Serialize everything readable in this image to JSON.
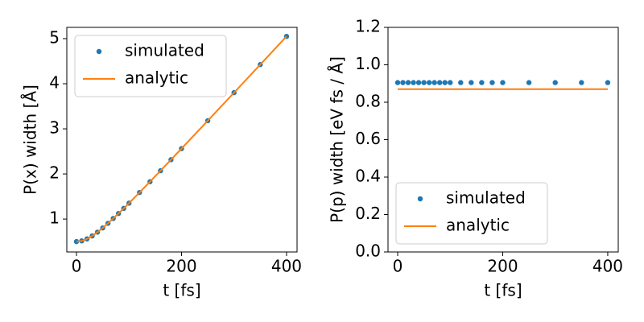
{
  "chart_data": [
    {
      "type": "scatter-line",
      "xlabel": "t [fs]",
      "ylabel": "P(x) width [Å]",
      "x": [
        0,
        10,
        20,
        30,
        40,
        50,
        60,
        70,
        80,
        90,
        100,
        120,
        140,
        160,
        180,
        200,
        250,
        300,
        350,
        400
      ],
      "series": [
        {
          "name": "simulated",
          "color": "#1f77b4",
          "mode": "markers",
          "values": [
            0.5,
            0.516,
            0.56,
            0.626,
            0.709,
            0.803,
            0.905,
            1.012,
            1.123,
            1.236,
            1.352,
            1.588,
            1.828,
            2.071,
            2.316,
            2.562,
            3.18,
            3.802,
            4.425,
            5.05
          ]
        },
        {
          "name": "analytic",
          "color": "#ff7f0e",
          "mode": "lines",
          "values": [
            0.5,
            0.516,
            0.56,
            0.626,
            0.709,
            0.803,
            0.905,
            1.012,
            1.123,
            1.236,
            1.352,
            1.588,
            1.828,
            2.071,
            2.316,
            2.562,
            3.18,
            3.802,
            4.425,
            5.05
          ]
        }
      ],
      "xlim": [
        -18.4,
        420
      ],
      "xticks": [
        0,
        200,
        400
      ],
      "ylim": [
        0.27,
        5.25
      ],
      "yticks": [
        1,
        2,
        3,
        4,
        5
      ],
      "legend": "upper left"
    },
    {
      "type": "scatter-line",
      "xlabel": "t [fs]",
      "ylabel": "P(p) width [eV fs / Å]",
      "x": [
        0,
        10,
        20,
        30,
        40,
        50,
        60,
        70,
        80,
        90,
        100,
        120,
        140,
        160,
        180,
        200,
        250,
        300,
        350,
        400
      ],
      "series": [
        {
          "name": "simulated",
          "color": "#1f77b4",
          "mode": "markers",
          "values": [
            0.905,
            0.905,
            0.905,
            0.905,
            0.905,
            0.905,
            0.905,
            0.905,
            0.905,
            0.905,
            0.905,
            0.905,
            0.905,
            0.905,
            0.905,
            0.905,
            0.905,
            0.905,
            0.905,
            0.905
          ]
        },
        {
          "name": "analytic",
          "color": "#ff7f0e",
          "mode": "lines",
          "values": [
            0.87,
            0.87,
            0.87,
            0.87,
            0.87,
            0.87,
            0.87,
            0.87,
            0.87,
            0.87,
            0.87,
            0.87,
            0.87,
            0.87,
            0.87,
            0.87,
            0.87,
            0.87,
            0.87,
            0.87
          ]
        }
      ],
      "xlim": [
        -18.4,
        420
      ],
      "xticks": [
        0,
        200,
        400
      ],
      "ylim": [
        0,
        1.2
      ],
      "yticks": [
        {
          "value": 0,
          "label": "0.0"
        },
        0.2,
        0.4,
        0.6,
        0.8,
        {
          "value": 1,
          "label": "1.0"
        },
        1.2
      ],
      "legend": "lower left"
    }
  ]
}
